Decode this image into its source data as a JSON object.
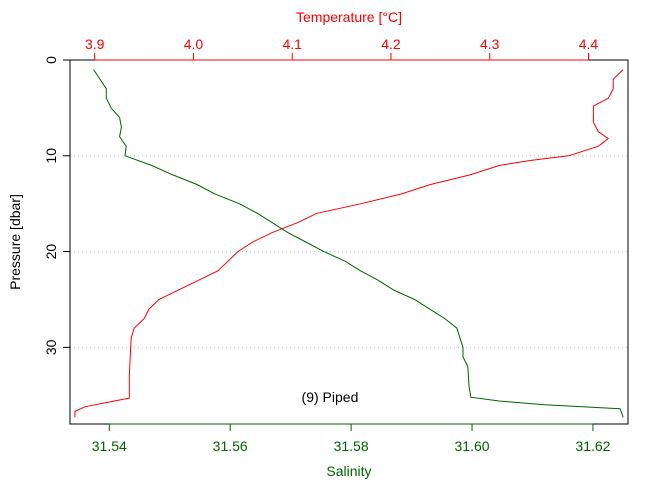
{
  "chart_data": {
    "type": "line",
    "title": "",
    "annotation": "(9) Piped",
    "y_axis": {
      "label": "Pressure [dbar]",
      "range": [
        38,
        0
      ],
      "inverted": true,
      "ticks": [
        0,
        10,
        20,
        30
      ]
    },
    "top_axis": {
      "label": "Temperature [°C]",
      "range": [
        3.875,
        4.44
      ],
      "ticks": [
        3.9,
        4.0,
        4.1,
        4.2,
        4.3,
        4.4
      ],
      "tick_labels": [
        "3.9",
        "4.0",
        "4.1",
        "4.2",
        "4.3",
        "4.4"
      ],
      "color": "#ff0000"
    },
    "bottom_axis": {
      "label": "Salinity",
      "range": [
        31.5335,
        31.6258
      ],
      "ticks": [
        31.54,
        31.56,
        31.58,
        31.6,
        31.62
      ],
      "tick_labels": [
        "31.54",
        "31.56",
        "31.58",
        "31.60",
        "31.62"
      ],
      "color": "#006400"
    },
    "grid": {
      "horizontal": true,
      "vertical": false
    },
    "series": [
      {
        "variable": "temperature",
        "axis": "top",
        "color": "#ff0000",
        "points": [
          [
            4.435,
            1
          ],
          [
            4.425,
            2
          ],
          [
            4.425,
            3
          ],
          [
            4.42,
            4
          ],
          [
            4.405,
            4.8
          ],
          [
            4.405,
            6.5
          ],
          [
            4.41,
            7.5
          ],
          [
            4.42,
            8.2
          ],
          [
            4.41,
            9.0
          ],
          [
            4.38,
            10.0
          ],
          [
            4.34,
            10.5
          ],
          [
            4.31,
            11.0
          ],
          [
            4.28,
            12.0
          ],
          [
            4.24,
            13.0
          ],
          [
            4.21,
            14.0
          ],
          [
            4.17,
            15.0
          ],
          [
            4.125,
            16.0
          ],
          [
            4.105,
            17.0
          ],
          [
            4.08,
            18.0
          ],
          [
            4.06,
            19.0
          ],
          [
            4.045,
            20.0
          ],
          [
            4.035,
            21.0
          ],
          [
            4.025,
            22.0
          ],
          [
            4.005,
            23.0
          ],
          [
            3.985,
            24.0
          ],
          [
            3.965,
            25.0
          ],
          [
            3.955,
            26.0
          ],
          [
            3.95,
            27.0
          ],
          [
            3.94,
            28.0
          ],
          [
            3.937,
            29.0
          ],
          [
            3.936,
            31.0
          ],
          [
            3.935,
            33.0
          ],
          [
            3.935,
            35.3
          ],
          [
            3.92,
            35.6
          ],
          [
            3.89,
            36.2
          ],
          [
            3.88,
            36.7
          ],
          [
            3.88,
            37.3
          ]
        ]
      },
      {
        "variable": "salinity",
        "axis": "bottom",
        "color": "#006400",
        "points": [
          [
            31.5374,
            1
          ],
          [
            31.5395,
            3
          ],
          [
            31.5395,
            4
          ],
          [
            31.5403,
            5
          ],
          [
            31.5417,
            6
          ],
          [
            31.542,
            7
          ],
          [
            31.5417,
            8
          ],
          [
            31.5428,
            9
          ],
          [
            31.5426,
            10
          ],
          [
            31.547,
            11
          ],
          [
            31.5505,
            12
          ],
          [
            31.5545,
            13
          ],
          [
            31.5575,
            14
          ],
          [
            31.5615,
            15
          ],
          [
            31.5645,
            16
          ],
          [
            31.567,
            17
          ],
          [
            31.5695,
            18
          ],
          [
            31.5725,
            19
          ],
          [
            31.5755,
            20
          ],
          [
            31.579,
            21
          ],
          [
            31.5815,
            22
          ],
          [
            31.5845,
            23
          ],
          [
            31.587,
            24
          ],
          [
            31.5905,
            25
          ],
          [
            31.593,
            26
          ],
          [
            31.5955,
            27
          ],
          [
            31.5975,
            28
          ],
          [
            31.598,
            29
          ],
          [
            31.5985,
            30
          ],
          [
            31.5985,
            31
          ],
          [
            31.5993,
            32
          ],
          [
            31.5995,
            34
          ],
          [
            31.5998,
            35.2
          ],
          [
            31.6045,
            35.6
          ],
          [
            31.612,
            36.0
          ],
          [
            31.6245,
            36.4
          ],
          [
            31.625,
            37.3
          ]
        ]
      }
    ]
  }
}
